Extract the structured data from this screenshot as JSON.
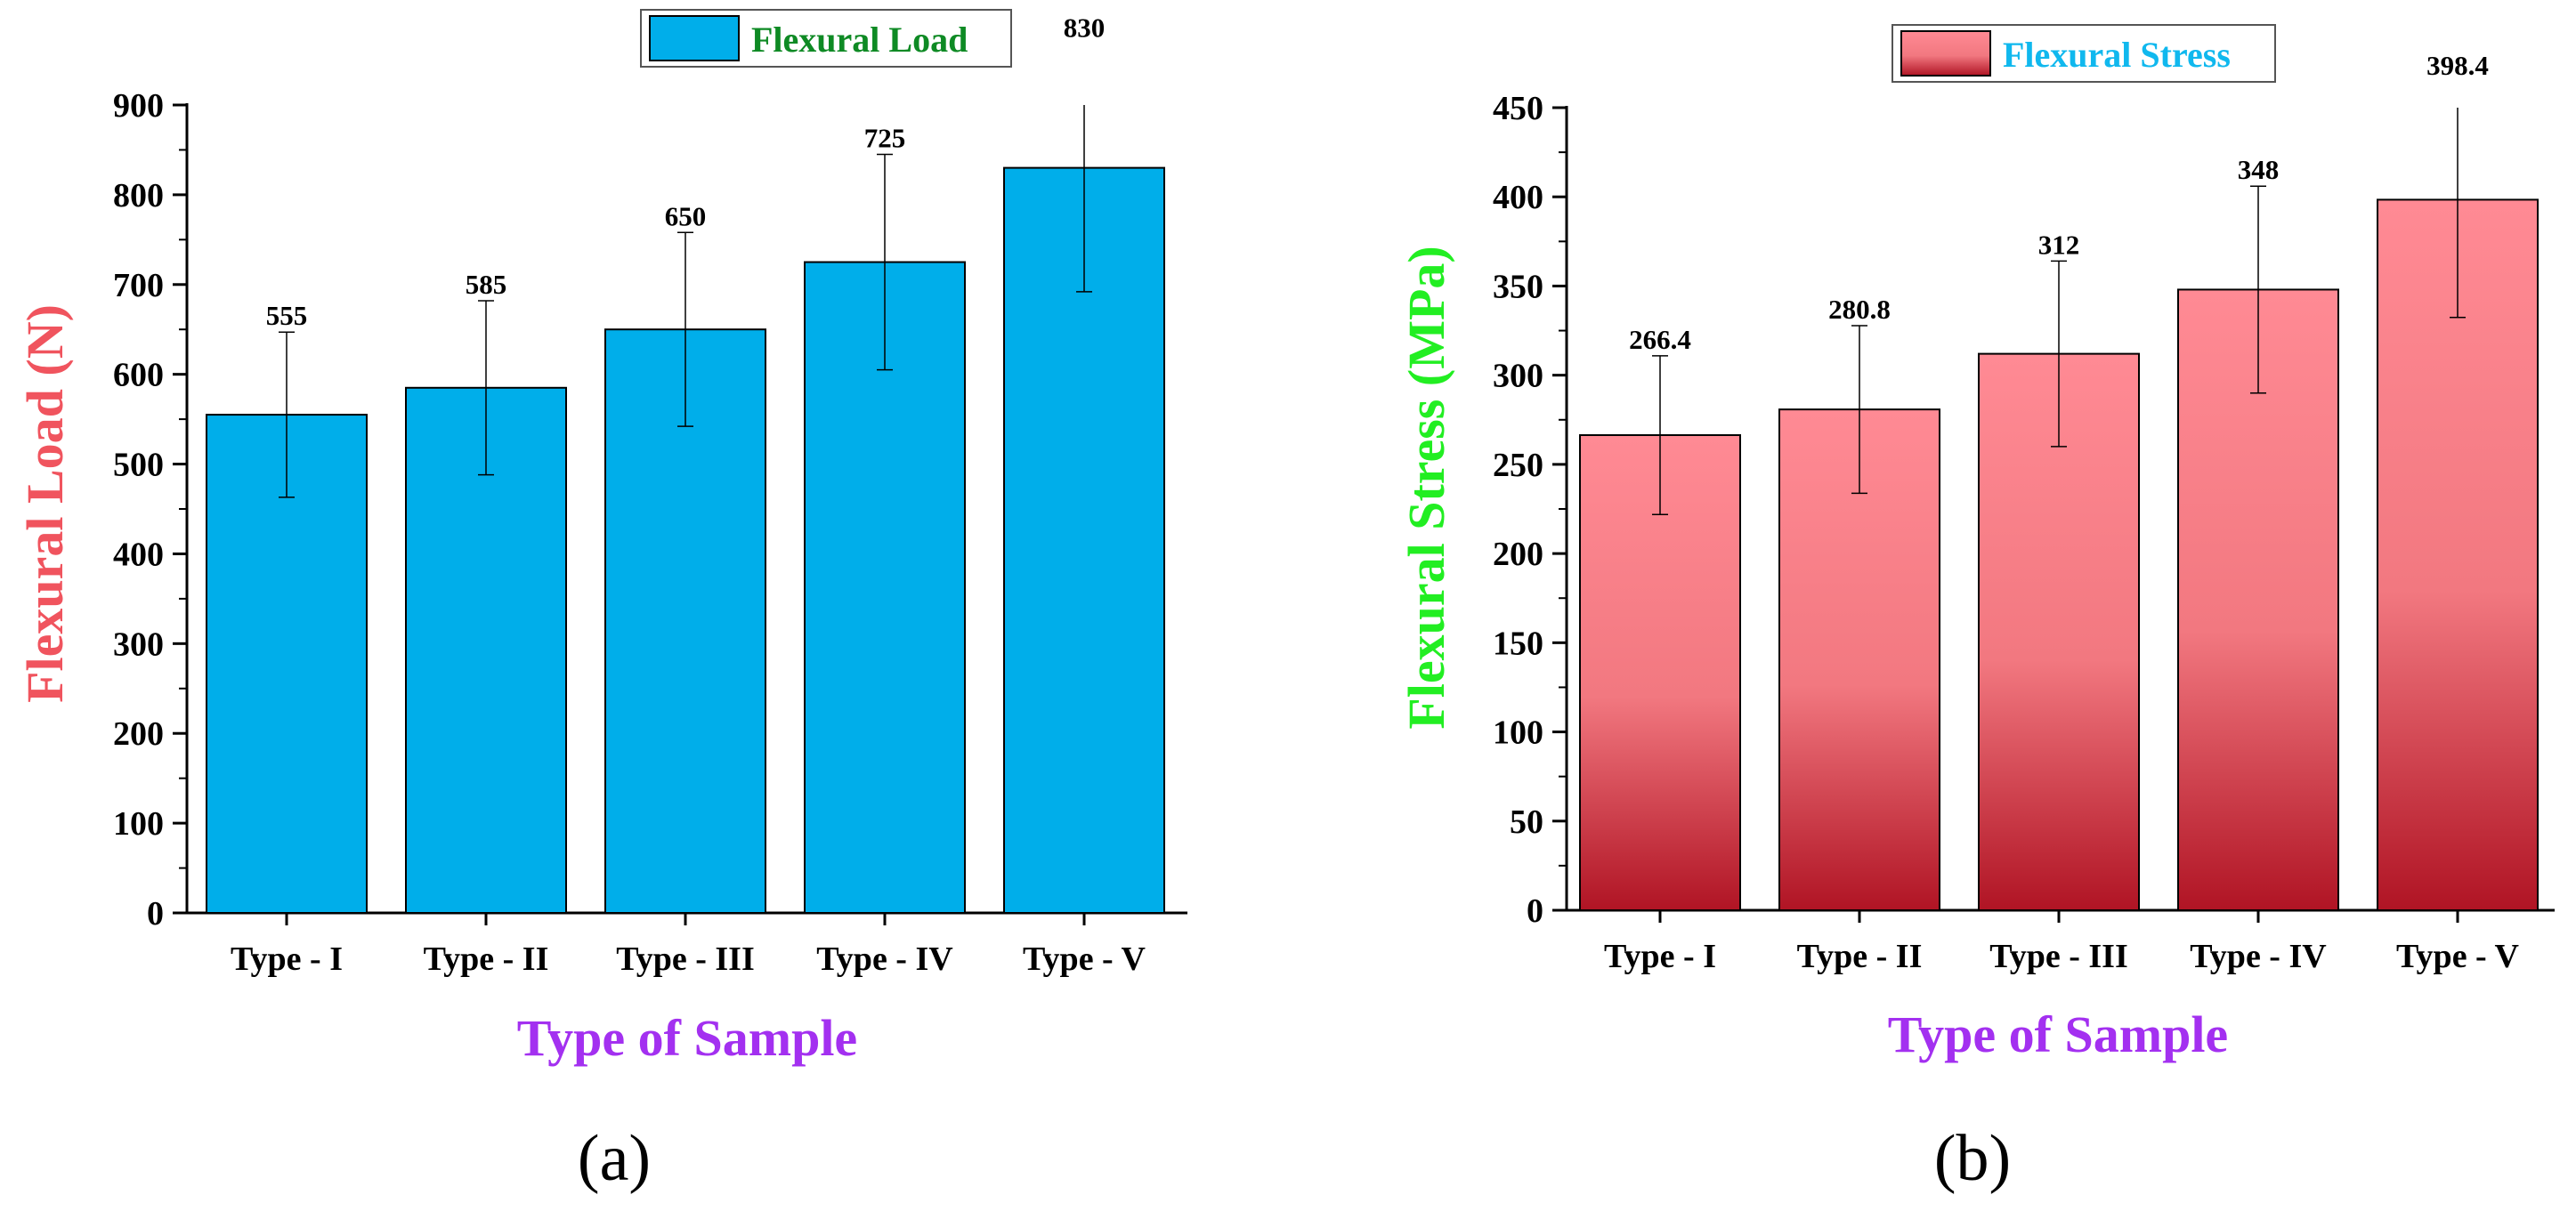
{
  "chart_data": [
    {
      "type": "bar",
      "panel_label": "(a)",
      "title": "",
      "xlabel": "Type of Sample",
      "ylabel": "Flexural Load (N)",
      "categories": [
        "Type - I",
        "Type - II",
        "Type - III",
        "Type - IV",
        "Type - V"
      ],
      "series": [
        {
          "name": "Flexural Load",
          "values": [
            555,
            585,
            650,
            725,
            830
          ],
          "data_labels": [
            "555",
            "585",
            "650",
            "725",
            "830"
          ],
          "error": [
            92,
            97,
            108,
            120,
            138
          ],
          "color": "#00aeea"
        }
      ],
      "ylim": [
        0,
        900
      ],
      "yticks": [
        0,
        100,
        200,
        300,
        400,
        500,
        600,
        700,
        800,
        900
      ],
      "ytick_labels": [
        "0",
        "100",
        "200",
        "300",
        "400",
        "500",
        "600",
        "700",
        "800",
        "900"
      ],
      "grid": false,
      "legend": "top-center"
    },
    {
      "type": "bar",
      "panel_label": "(b)",
      "title": "",
      "xlabel": "Type of Sample",
      "ylabel": "Flexural Stress (MPa)",
      "categories": [
        "Type - I",
        "Type - II",
        "Type - III",
        "Type - IV",
        "Type - V"
      ],
      "series": [
        {
          "name": "Flexural Stress",
          "values": [
            266.4,
            280.8,
            312,
            348,
            398.4
          ],
          "data_labels": [
            "266.4",
            "280.8",
            "312",
            "348",
            "398.4"
          ],
          "error": [
            44.5,
            47,
            52,
            58,
            66
          ],
          "color_top": "#ff8a94",
          "color_bottom": "#b01424"
        }
      ],
      "ylim": [
        0,
        450
      ],
      "yticks": [
        0,
        50,
        100,
        150,
        200,
        250,
        300,
        350,
        400,
        450
      ],
      "ytick_labels": [
        "0",
        "50",
        "100",
        "150",
        "200",
        "250",
        "300",
        "350",
        "400",
        "450"
      ],
      "grid": false,
      "legend": "top-center"
    }
  ]
}
